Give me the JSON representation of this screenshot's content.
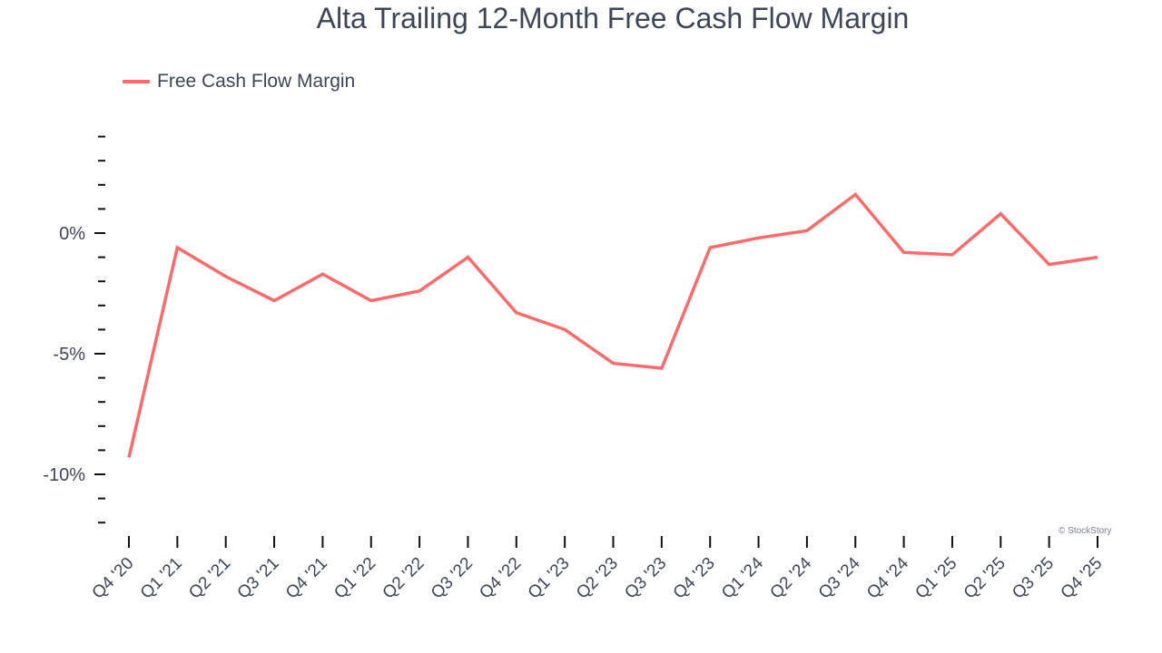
{
  "title": "Alta Trailing 12-Month Free Cash Flow Margin",
  "legend": {
    "label": "Free Cash Flow Margin",
    "color": "#ff6b6b"
  },
  "watermark": "© StockStory",
  "chart_data": {
    "type": "line",
    "title": "Alta Trailing 12-Month Free Cash Flow Margin",
    "xlabel": "",
    "ylabel": "",
    "categories": [
      "Q4 '20",
      "Q1 '21",
      "Q2 '21",
      "Q3 '21",
      "Q4 '21",
      "Q1 '22",
      "Q2 '22",
      "Q3 '22",
      "Q4 '22",
      "Q1 '23",
      "Q2 '23",
      "Q3 '23",
      "Q4 '23",
      "Q1 '24",
      "Q2 '24",
      "Q3 '24",
      "Q4 '24",
      "Q1 '25",
      "Q2 '25",
      "Q3 '25",
      "Q4 '25"
    ],
    "series": [
      {
        "name": "Free Cash Flow Margin",
        "color": "#ff6b6b",
        "values": [
          -9.3,
          -0.6,
          -1.8,
          -2.8,
          -1.7,
          -2.8,
          -2.4,
          -1.0,
          -3.3,
          -4.0,
          -5.4,
          -5.6,
          -0.6,
          -0.2,
          0.1,
          1.6,
          -0.8,
          -0.9,
          0.8,
          -1.3,
          -1.0
        ]
      }
    ],
    "yticks": [
      {
        "value": 0,
        "label": "0%"
      },
      {
        "value": -5,
        "label": "-5%"
      },
      {
        "value": -10,
        "label": "-10%"
      }
    ],
    "ylim": [
      -12,
      4
    ],
    "minor_tick_step": 1,
    "grid": false,
    "legend_position": "top-left"
  }
}
